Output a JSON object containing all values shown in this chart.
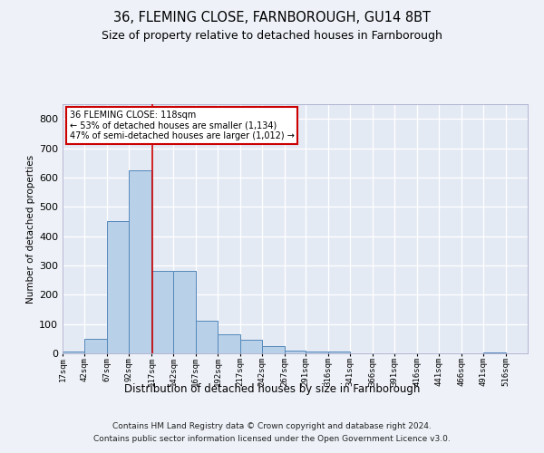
{
  "title1": "36, FLEMING CLOSE, FARNBOROUGH, GU14 8BT",
  "title2": "Size of property relative to detached houses in Farnborough",
  "xlabel": "Distribution of detached houses by size in Farnborough",
  "ylabel": "Number of detached properties",
  "footer1": "Contains HM Land Registry data © Crown copyright and database right 2024.",
  "footer2": "Contains public sector information licensed under the Open Government Licence v3.0.",
  "annotation_line1": "36 FLEMING CLOSE: 118sqm",
  "annotation_line2": "← 53% of detached houses are smaller (1,134)",
  "annotation_line3": "47% of semi-detached houses are larger (1,012) →",
  "property_size": 118,
  "bar_color": "#b8d0e8",
  "bar_edge_color": "#5588bb",
  "vline_color": "#cc0000",
  "annotation_box_edge_color": "#cc0000",
  "bin_edges": [
    17,
    42,
    67,
    92,
    117,
    142,
    167,
    192,
    217,
    242,
    267,
    291,
    316,
    341,
    366,
    391,
    416,
    441,
    466,
    491,
    516,
    541
  ],
  "bar_heights": [
    5,
    50,
    450,
    625,
    280,
    280,
    110,
    65,
    45,
    25,
    10,
    5,
    5,
    0,
    0,
    0,
    0,
    0,
    0,
    3,
    0
  ],
  "ylim": [
    0,
    850
  ],
  "yticks": [
    0,
    100,
    200,
    300,
    400,
    500,
    600,
    700,
    800
  ],
  "xtick_labels": [
    "17sqm",
    "42sqm",
    "67sqm",
    "92sqm",
    "117sqm",
    "142sqm",
    "167sqm",
    "192sqm",
    "217sqm",
    "242sqm",
    "267sqm",
    "291sqm",
    "316sqm",
    "341sqm",
    "366sqm",
    "391sqm",
    "416sqm",
    "441sqm",
    "466sqm",
    "491sqm",
    "516sqm"
  ],
  "background_color": "#eef2f8",
  "plot_bg_color": "#e4eaf4"
}
